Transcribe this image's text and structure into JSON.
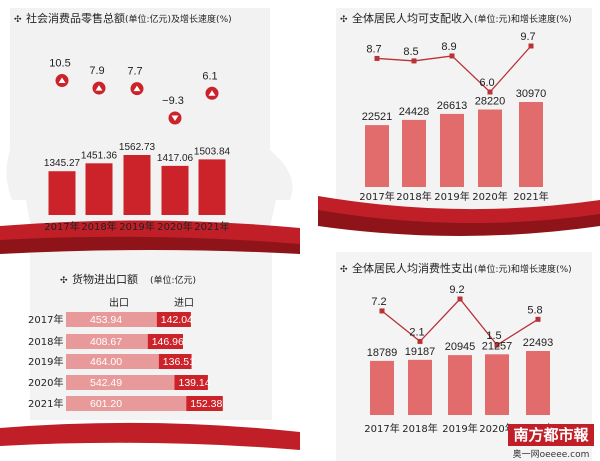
{
  "colors": {
    "bar_dark": "#cc2229",
    "bar_light": "#e26c6c",
    "bar_pink": "#e89a9a",
    "line": "#b83236",
    "band": "#c01f28",
    "bg_panel": "#f2f2f2"
  },
  "chart_data": [
    {
      "type": "bar",
      "title": "社会消费品零售总额",
      "title_unit": "(单位:亿元)及增长速度(%)",
      "categories": [
        "2017年",
        "2018年",
        "2019年",
        "2020年",
        "2021年"
      ],
      "values": [
        1345.27,
        1451.36,
        1562.73,
        1417.06,
        1503.84
      ],
      "value_labels": [
        "1345.27",
        "1451.36",
        "1562.73",
        "1417.06",
        "1503.84"
      ],
      "growth": [
        10.5,
        7.9,
        7.7,
        -9.3,
        6.1
      ],
      "growth_labels": [
        "10.5",
        "7.9",
        "7.7",
        "−9.3",
        "6.1"
      ]
    },
    {
      "type": "bar",
      "title": "全体居民人均可支配收入",
      "title_unit": "(单位:元)和增长速度(%)",
      "categories": [
        "2017年",
        "2018年",
        "2019年",
        "2020年",
        "2021年"
      ],
      "values": [
        22521,
        24428,
        26613,
        28220,
        30970
      ],
      "value_labels": [
        "22521",
        "24428",
        "26613",
        "28220",
        "30970"
      ],
      "growth": [
        8.7,
        8.5,
        8.9,
        6.0,
        9.7
      ],
      "growth_labels": [
        "8.7",
        "8.5",
        "8.9",
        "6.0",
        "9.7"
      ]
    },
    {
      "type": "bar",
      "title": "货物进出口额",
      "title_unit": "(单位:亿元)",
      "series": [
        {
          "name": "出口",
          "values": [
            453.94,
            408.67,
            464.0,
            542.49,
            601.2
          ],
          "value_labels": [
            "453.94",
            "408.67",
            "464.00",
            "542.49",
            "601.20"
          ]
        },
        {
          "name": "进口",
          "values": [
            142.04,
            146.96,
            136.51,
            139.14,
            152.38
          ],
          "value_labels": [
            "142.04",
            "146.96",
            "136.51",
            "139.14",
            "152.38"
          ]
        }
      ],
      "categories": [
        "2017年",
        "2018年",
        "2019年",
        "2020年",
        "2021年"
      ]
    },
    {
      "type": "bar",
      "title": "全体居民人均消费性支出",
      "title_unit": "(单位:元)和增长速度(%)",
      "categories": [
        "2017年",
        "2018年",
        "2019年",
        "2020年",
        "2021年"
      ],
      "values": [
        18789,
        19187,
        20945,
        21257,
        22493
      ],
      "value_labels": [
        "18789",
        "19187",
        "20945",
        "21257",
        "22493"
      ],
      "growth": [
        7.2,
        2.1,
        9.2,
        1.5,
        5.8
      ],
      "growth_labels": [
        "7.2",
        "2.1",
        "9.2",
        "1.5",
        "5.8"
      ]
    }
  ],
  "logo": {
    "name": "南方都市報",
    "site": "奥一网oeeee.com"
  }
}
